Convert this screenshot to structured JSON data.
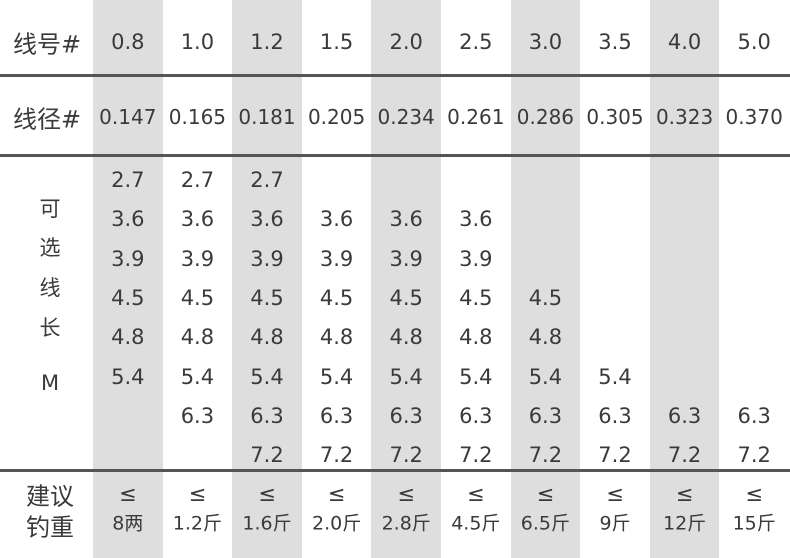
{
  "rows": [
    {
      "label": "线号#",
      "values": [
        "0.8",
        "1.0",
        "1.2",
        "1.5",
        "2.0",
        "2.5",
        "3.0",
        "3.5",
        "4.0",
        "5.0"
      ]
    },
    {
      "label": "线径#",
      "values": [
        "0.147",
        "0.165",
        "0.181",
        "0.205",
        "0.234",
        "0.261",
        "0.286",
        "0.305",
        "0.323",
        "0.370"
      ]
    }
  ],
  "lengths": {
    "label": [
      "可",
      "选",
      "线",
      "长",
      "M"
    ],
    "columns": [
      [
        "2.7",
        "3.6",
        "3.9",
        "4.5",
        "4.8",
        "5.4",
        null,
        null
      ],
      [
        "2.7",
        "3.6",
        "3.9",
        "4.5",
        "4.8",
        "5.4",
        "6.3",
        null
      ],
      [
        "2.7",
        "3.6",
        "3.9",
        "4.5",
        "4.8",
        "5.4",
        "6.3",
        "7.2"
      ],
      [
        null,
        "3.6",
        "3.9",
        "4.5",
        "4.8",
        "5.4",
        "6.3",
        "7.2"
      ],
      [
        null,
        "3.6",
        "3.9",
        "4.5",
        "4.8",
        "5.4",
        "6.3",
        "7.2"
      ],
      [
        null,
        "3.6",
        "3.9",
        "4.5",
        "4.8",
        "5.4",
        "6.3",
        "7.2"
      ],
      [
        null,
        null,
        null,
        "4.5",
        "4.8",
        "5.4",
        "6.3",
        "7.2"
      ],
      [
        null,
        null,
        null,
        null,
        null,
        "5.4",
        "6.3",
        "7.2"
      ],
      [
        null,
        null,
        null,
        null,
        null,
        null,
        "6.3",
        "7.2"
      ],
      [
        null,
        null,
        null,
        null,
        null,
        null,
        "6.3",
        "7.2"
      ]
    ]
  },
  "weight": {
    "label": [
      "建议",
      "钓重"
    ],
    "values": [
      {
        "symbol": "≤",
        "weight": "8两"
      },
      {
        "symbol": "≤",
        "weight": "1.2斤"
      },
      {
        "symbol": "≤",
        "weight": "1.6斤"
      },
      {
        "symbol": "≤",
        "weight": "2.0斤"
      },
      {
        "symbol": "≤",
        "weight": "2.8斤"
      },
      {
        "symbol": "≤",
        "weight": "4.5斤"
      },
      {
        "symbol": "≤",
        "weight": "6.5斤"
      },
      {
        "symbol": "≤",
        "weight": "9斤"
      },
      {
        "symbol": "≤",
        "weight": "12斤"
      },
      {
        "symbol": "≤",
        "weight": "15斤"
      }
    ]
  }
}
